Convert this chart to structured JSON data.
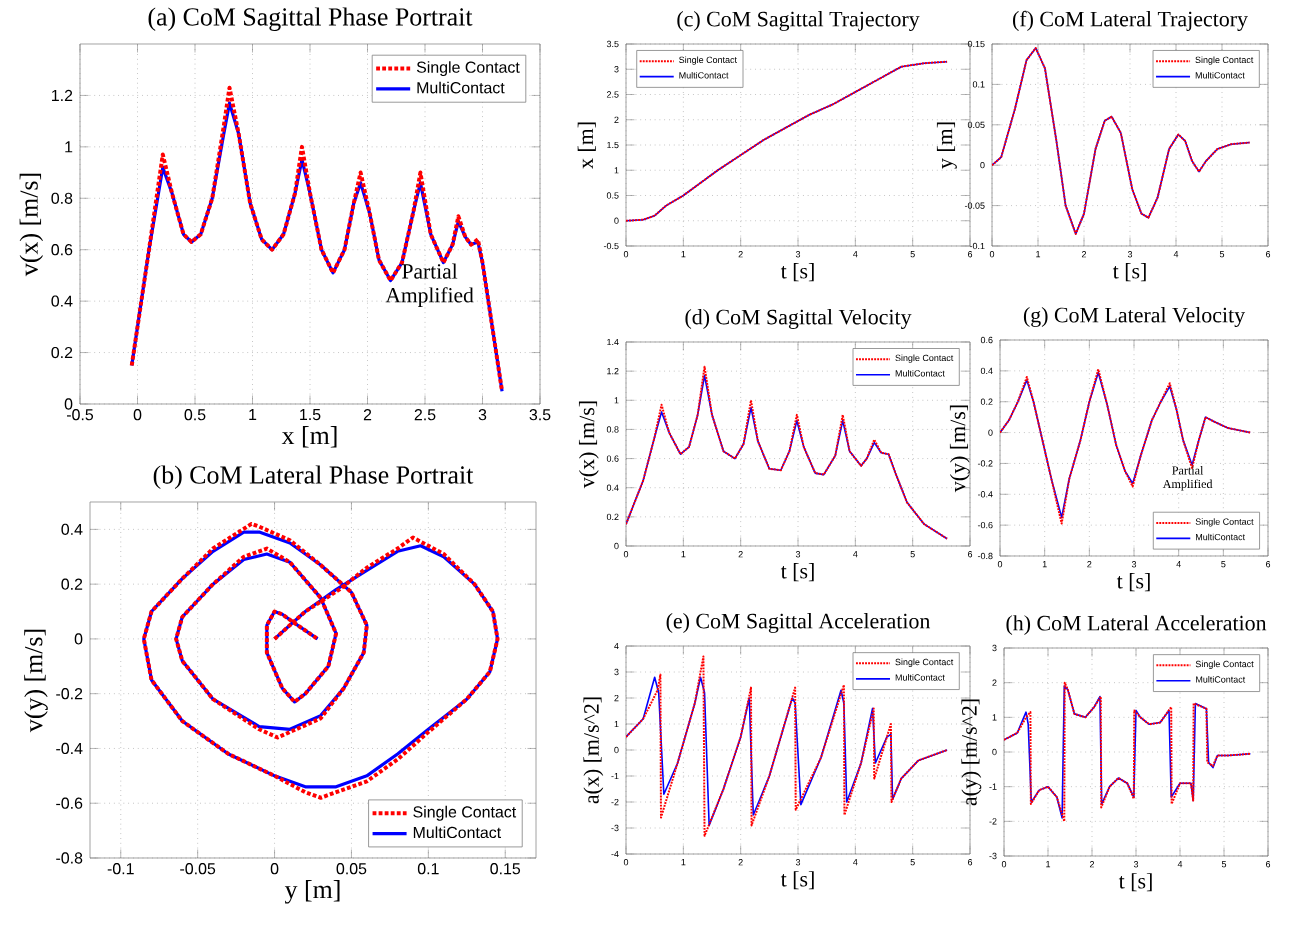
{
  "chart_data": [
    {
      "type": "line",
      "title": "(a) CoM Sagittal Phase Portrait",
      "xlabel": "x [m]",
      "ylabel": "v(x) [m/s]",
      "xlim": [
        -0.5,
        3.5
      ],
      "ylim": [
        0,
        1.4
      ],
      "xticks": [
        -0.5,
        0,
        0.5,
        1,
        1.5,
        2,
        2.5,
        3,
        3.5
      ],
      "yticks": [
        0,
        0.2,
        0.4,
        0.6,
        0.8,
        1,
        1.2
      ],
      "grid": true,
      "legend": "top right",
      "annotations": [
        "Partial Amplified"
      ],
      "series": [
        {
          "name": "Single Contact",
          "color": "#ff0000",
          "line_style": "dashed",
          "x": [
            -0.05,
            0.1,
            0.22,
            0.3,
            0.4,
            0.47,
            0.55,
            0.65,
            0.75,
            0.8,
            0.88,
            0.98,
            1.08,
            1.17,
            1.27,
            1.37,
            1.43,
            1.5,
            1.6,
            1.7,
            1.8,
            1.88,
            1.94,
            2.02,
            2.1,
            2.2,
            2.3,
            2.4,
            2.46,
            2.55,
            2.66,
            2.74,
            2.79,
            2.85,
            2.9,
            2.96,
            3.0,
            3.17
          ],
          "values": [
            0.15,
            0.6,
            0.97,
            0.82,
            0.66,
            0.63,
            0.66,
            0.8,
            1.08,
            1.23,
            1.05,
            0.78,
            0.64,
            0.6,
            0.66,
            0.82,
            1.0,
            0.82,
            0.6,
            0.51,
            0.6,
            0.78,
            0.9,
            0.74,
            0.56,
            0.48,
            0.55,
            0.75,
            0.9,
            0.66,
            0.55,
            0.62,
            0.73,
            0.65,
            0.62,
            0.64,
            0.55,
            0.05
          ]
        },
        {
          "name": "MultiContact",
          "color": "#0000ff",
          "line_style": "solid",
          "x": [
            -0.05,
            0.1,
            0.22,
            0.3,
            0.4,
            0.47,
            0.55,
            0.65,
            0.75,
            0.8,
            0.88,
            0.98,
            1.08,
            1.17,
            1.27,
            1.37,
            1.43,
            1.5,
            1.6,
            1.7,
            1.8,
            1.88,
            1.94,
            2.02,
            2.1,
            2.2,
            2.3,
            2.4,
            2.46,
            2.55,
            2.66,
            2.74,
            2.79,
            2.85,
            2.9,
            2.96,
            3.0,
            3.17
          ],
          "values": [
            0.15,
            0.6,
            0.92,
            0.82,
            0.66,
            0.63,
            0.66,
            0.8,
            1.05,
            1.17,
            1.05,
            0.78,
            0.64,
            0.6,
            0.66,
            0.82,
            0.95,
            0.82,
            0.6,
            0.51,
            0.6,
            0.78,
            0.86,
            0.74,
            0.56,
            0.48,
            0.55,
            0.75,
            0.86,
            0.66,
            0.55,
            0.62,
            0.71,
            0.65,
            0.62,
            0.63,
            0.55,
            0.05
          ]
        }
      ]
    },
    {
      "type": "line",
      "title": "(b) CoM Lateral Phase Portrait",
      "xlabel": "y [m]",
      "ylabel": "v(y) [m/s]",
      "xlim": [
        -0.12,
        0.17
      ],
      "ylim": [
        -0.8,
        0.5
      ],
      "xticks": [
        -0.1,
        -0.05,
        0,
        0.05,
        0.1,
        0.15
      ],
      "yticks": [
        -0.8,
        -0.6,
        -0.4,
        -0.2,
        0,
        0.2,
        0.4
      ],
      "grid": true,
      "legend": "bottom right",
      "series": [
        {
          "name": "Single Contact",
          "color": "#ff0000",
          "line_style": "dashed",
          "x": [
            0,
            0.02,
            0.042,
            0.06,
            0.08,
            0.09,
            0.11,
            0.13,
            0.142,
            0.145,
            0.14,
            0.125,
            0.1,
            0.08,
            0.06,
            0.03,
            0.02,
            0.0,
            -0.03,
            -0.06,
            -0.08,
            -0.085,
            -0.08,
            -0.06,
            -0.04,
            -0.015,
            -0.01,
            0.01,
            0.03,
            0.05,
            0.06,
            0.058,
            0.045,
            0.03,
            0.002,
            -0.01,
            -0.04,
            -0.06,
            -0.064,
            -0.06,
            -0.04,
            -0.02,
            -0.005,
            0.01,
            0.03,
            0.04,
            0.035,
            0.02,
            0.013,
            0.005,
            -0.005,
            -0.005,
            0.0,
            0.005,
            0.015,
            0.028
          ],
          "values": [
            0,
            0.1,
            0.18,
            0.26,
            0.33,
            0.37,
            0.31,
            0.2,
            0.1,
            0,
            -0.12,
            -0.22,
            -0.34,
            -0.44,
            -0.52,
            -0.58,
            -0.56,
            -0.5,
            -0.42,
            -0.3,
            -0.15,
            0,
            0.1,
            0.22,
            0.33,
            0.42,
            0.41,
            0.36,
            0.27,
            0.17,
            0.05,
            -0.05,
            -0.18,
            -0.29,
            -0.36,
            -0.33,
            -0.22,
            -0.08,
            0,
            0.08,
            0.2,
            0.3,
            0.33,
            0.28,
            0.15,
            0.02,
            -0.1,
            -0.2,
            -0.23,
            -0.18,
            -0.05,
            0.05,
            0.1,
            0.09,
            0.05,
            0
          ]
        },
        {
          "name": "MultiContact",
          "color": "#0000ff",
          "line_style": "solid",
          "x": [
            0,
            0.02,
            0.04,
            0.06,
            0.08,
            0.095,
            0.11,
            0.13,
            0.142,
            0.145,
            0.14,
            0.125,
            0.1,
            0.08,
            0.06,
            0.04,
            0.02,
            0.0,
            -0.03,
            -0.06,
            -0.08,
            -0.085,
            -0.08,
            -0.06,
            -0.04,
            -0.02,
            -0.01,
            0.01,
            0.03,
            0.05,
            0.06,
            0.058,
            0.045,
            0.03,
            0.01,
            -0.01,
            -0.04,
            -0.06,
            -0.064,
            -0.06,
            -0.04,
            -0.02,
            -0.005,
            0.01,
            0.03,
            0.04,
            0.035,
            0.02,
            0.013,
            0.005,
            -0.005,
            -0.005,
            0.0,
            0.005,
            0.015,
            0.028
          ],
          "values": [
            0,
            0.1,
            0.18,
            0.25,
            0.32,
            0.34,
            0.3,
            0.2,
            0.1,
            0,
            -0.12,
            -0.22,
            -0.33,
            -0.42,
            -0.5,
            -0.54,
            -0.54,
            -0.5,
            -0.42,
            -0.3,
            -0.15,
            0,
            0.1,
            0.22,
            0.32,
            0.39,
            0.39,
            0.35,
            0.27,
            0.17,
            0.05,
            -0.05,
            -0.18,
            -0.28,
            -0.33,
            -0.32,
            -0.22,
            -0.08,
            0,
            0.08,
            0.2,
            0.29,
            0.31,
            0.28,
            0.15,
            0.02,
            -0.1,
            -0.2,
            -0.23,
            -0.18,
            -0.05,
            0.05,
            0.1,
            0.09,
            0.05,
            0
          ]
        }
      ]
    },
    {
      "type": "line",
      "title": "(c) CoM Sagittal Trajectory",
      "xlabel": "t [s]",
      "ylabel": "x [m]",
      "xlim": [
        0,
        6
      ],
      "ylim": [
        -0.5,
        3.5
      ],
      "xticks": [
        0,
        1,
        2,
        3,
        4,
        5,
        6
      ],
      "yticks": [
        -0.5,
        0,
        0.5,
        1,
        1.5,
        2,
        2.5,
        3,
        3.5
      ],
      "grid": true,
      "legend": "top left",
      "series": [
        {
          "name": "Single Contact",
          "color": "#ff0000",
          "line_style": "dashed",
          "x": [
            0,
            0.3,
            0.5,
            0.7,
            1.0,
            1.3,
            1.6,
            2.0,
            2.4,
            2.8,
            3.2,
            3.6,
            4.0,
            4.4,
            4.8,
            5.2,
            5.6
          ],
          "values": [
            0,
            0.02,
            0.1,
            0.3,
            0.5,
            0.75,
            1.0,
            1.3,
            1.6,
            1.85,
            2.1,
            2.3,
            2.55,
            2.8,
            3.05,
            3.12,
            3.15
          ]
        },
        {
          "name": "MultiContact",
          "color": "#0000ff",
          "line_style": "solid",
          "x": [
            0,
            0.3,
            0.5,
            0.7,
            1.0,
            1.3,
            1.6,
            2.0,
            2.4,
            2.8,
            3.2,
            3.6,
            4.0,
            4.4,
            4.8,
            5.2,
            5.6
          ],
          "values": [
            0,
            0.02,
            0.1,
            0.3,
            0.5,
            0.75,
            1.0,
            1.3,
            1.6,
            1.85,
            2.1,
            2.3,
            2.55,
            2.8,
            3.05,
            3.12,
            3.15
          ]
        }
      ]
    },
    {
      "type": "line",
      "title": "(d) CoM Sagittal Velocity",
      "xlabel": "t [s]",
      "ylabel": "v(x) [m/s]",
      "xlim": [
        0,
        6
      ],
      "ylim": [
        0,
        1.4
      ],
      "xticks": [
        0,
        1,
        2,
        3,
        4,
        5,
        6
      ],
      "yticks": [
        0,
        0.2,
        0.4,
        0.6,
        0.8,
        1,
        1.2,
        1.4
      ],
      "grid": true,
      "legend": "top right",
      "series": [
        {
          "name": "Single Contact",
          "color": "#ff0000",
          "line_style": "dashed",
          "x": [
            0,
            0.3,
            0.5,
            0.62,
            0.75,
            0.95,
            1.1,
            1.25,
            1.37,
            1.5,
            1.7,
            1.9,
            2.05,
            2.18,
            2.3,
            2.5,
            2.7,
            2.85,
            2.98,
            3.1,
            3.3,
            3.45,
            3.65,
            3.78,
            3.9,
            4.1,
            4.2,
            4.33,
            4.45,
            4.58,
            4.7,
            4.9,
            5.2,
            5.6
          ],
          "values": [
            0.15,
            0.45,
            0.75,
            0.97,
            0.78,
            0.63,
            0.68,
            0.9,
            1.23,
            0.9,
            0.65,
            0.6,
            0.7,
            1.0,
            0.72,
            0.53,
            0.52,
            0.65,
            0.9,
            0.68,
            0.5,
            0.49,
            0.62,
            0.9,
            0.65,
            0.55,
            0.6,
            0.73,
            0.64,
            0.63,
            0.5,
            0.3,
            0.15,
            0.05
          ]
        },
        {
          "name": "MultiContact",
          "color": "#0000ff",
          "line_style": "solid",
          "x": [
            0,
            0.3,
            0.5,
            0.62,
            0.75,
            0.95,
            1.1,
            1.25,
            1.37,
            1.5,
            1.7,
            1.9,
            2.05,
            2.18,
            2.3,
            2.5,
            2.7,
            2.85,
            2.98,
            3.1,
            3.3,
            3.45,
            3.65,
            3.78,
            3.9,
            4.1,
            4.2,
            4.33,
            4.45,
            4.58,
            4.7,
            4.9,
            5.2,
            5.6
          ],
          "values": [
            0.15,
            0.45,
            0.75,
            0.92,
            0.78,
            0.63,
            0.68,
            0.9,
            1.17,
            0.9,
            0.65,
            0.6,
            0.7,
            0.95,
            0.72,
            0.53,
            0.52,
            0.65,
            0.86,
            0.68,
            0.5,
            0.49,
            0.62,
            0.86,
            0.65,
            0.55,
            0.6,
            0.71,
            0.64,
            0.63,
            0.5,
            0.3,
            0.15,
            0.05
          ]
        }
      ]
    },
    {
      "type": "line",
      "title": "(e) CoM Sagittal Acceleration",
      "xlabel": "t [s]",
      "ylabel": "a(x) [m/s^2]",
      "xlim": [
        0,
        6
      ],
      "ylim": [
        -4,
        4
      ],
      "xticks": [
        0,
        1,
        2,
        3,
        4,
        5,
        6
      ],
      "yticks": [
        -4,
        -3,
        -2,
        -1,
        0,
        1,
        2,
        3,
        4
      ],
      "grid": true,
      "legend": "top right",
      "series": [
        {
          "name": "Single Contact",
          "color": "#ff0000",
          "line_style": "dashed",
          "x": [
            0,
            0.3,
            0.55,
            0.6,
            0.61,
            0.9,
            1.2,
            1.35,
            1.37,
            1.7,
            2.0,
            2.18,
            2.19,
            2.5,
            2.95,
            2.96,
            3.4,
            3.8,
            3.81,
            4.1,
            4.32,
            4.33,
            4.55,
            4.62,
            4.63,
            4.8,
            5.1,
            5.6
          ],
          "values": [
            0.5,
            1.2,
            2.3,
            2.9,
            -2.6,
            -0.5,
            1.8,
            3.6,
            -3.3,
            -1.5,
            0.5,
            2.4,
            -2.9,
            -1.0,
            2.4,
            -2.3,
            -0.3,
            2.5,
            -2.5,
            -0.5,
            1.6,
            -1.1,
            0.5,
            1.0,
            -2.0,
            -1.1,
            -0.4,
            0.0
          ]
        },
        {
          "name": "MultiContact",
          "color": "#0000ff",
          "line_style": "solid",
          "x": [
            0,
            0.3,
            0.5,
            0.57,
            0.66,
            0.9,
            1.2,
            1.3,
            1.37,
            1.45,
            1.7,
            2.0,
            2.15,
            2.22,
            2.5,
            2.9,
            2.95,
            3.05,
            3.4,
            3.75,
            3.8,
            3.85,
            4.1,
            4.3,
            4.35,
            4.55,
            4.62,
            4.65,
            4.8,
            5.1,
            5.6
          ],
          "values": [
            0.5,
            1.2,
            2.8,
            2.2,
            -1.7,
            -0.5,
            1.8,
            2.8,
            2.2,
            -2.9,
            -1.5,
            0.5,
            2.0,
            -2.5,
            -1.0,
            2.0,
            1.8,
            -2.1,
            -0.3,
            2.3,
            1.8,
            -2.0,
            -0.5,
            1.6,
            -0.5,
            0.5,
            0.6,
            -1.9,
            -1.1,
            -0.4,
            0.0
          ]
        }
      ]
    },
    {
      "type": "line",
      "title": "(f) CoM Lateral Trajectory",
      "xlabel": "t [s]",
      "ylabel": "y [m]",
      "xlim": [
        0,
        6
      ],
      "ylim": [
        -0.1,
        0.15
      ],
      "xticks": [
        0,
        1,
        2,
        3,
        4,
        5,
        6
      ],
      "yticks": [
        -0.1,
        -0.05,
        0,
        0.05,
        0.1,
        0.15
      ],
      "grid": true,
      "legend": "top right",
      "series": [
        {
          "name": "Single Contact",
          "color": "#ff0000",
          "line_style": "dashed",
          "x": [
            0,
            0.2,
            0.5,
            0.75,
            0.95,
            1.15,
            1.4,
            1.6,
            1.82,
            2.0,
            2.25,
            2.45,
            2.6,
            2.8,
            3.05,
            3.25,
            3.4,
            3.6,
            3.85,
            4.05,
            4.2,
            4.35,
            4.5,
            4.65,
            4.9,
            5.2,
            5.6
          ],
          "values": [
            0,
            0.01,
            0.07,
            0.13,
            0.145,
            0.12,
            0.03,
            -0.05,
            -0.085,
            -0.06,
            0.02,
            0.055,
            0.06,
            0.04,
            -0.03,
            -0.06,
            -0.065,
            -0.04,
            0.02,
            0.038,
            0.03,
            0.005,
            -0.008,
            0.005,
            0.02,
            0.026,
            0.028
          ]
        },
        {
          "name": "MultiContact",
          "color": "#0000ff",
          "line_style": "solid",
          "x": [
            0,
            0.2,
            0.5,
            0.75,
            0.95,
            1.15,
            1.4,
            1.6,
            1.82,
            2.0,
            2.25,
            2.45,
            2.6,
            2.8,
            3.05,
            3.25,
            3.4,
            3.6,
            3.85,
            4.05,
            4.2,
            4.35,
            4.5,
            4.65,
            4.9,
            5.2,
            5.6
          ],
          "values": [
            0,
            0.01,
            0.07,
            0.13,
            0.145,
            0.12,
            0.03,
            -0.05,
            -0.085,
            -0.06,
            0.02,
            0.055,
            0.06,
            0.04,
            -0.03,
            -0.06,
            -0.065,
            -0.04,
            0.02,
            0.038,
            0.03,
            0.005,
            -0.008,
            0.005,
            0.02,
            0.026,
            0.028
          ]
        }
      ]
    },
    {
      "type": "line",
      "title": "(g) CoM Lateral Velocity",
      "xlabel": "t [s]",
      "ylabel": "v(y) [m/s]",
      "xlim": [
        0,
        6
      ],
      "ylim": [
        -0.8,
        0.6
      ],
      "xticks": [
        0,
        1,
        2,
        3,
        4,
        5,
        6
      ],
      "yticks": [
        -0.8,
        -0.6,
        -0.4,
        -0.2,
        0,
        0.2,
        0.4,
        0.6
      ],
      "grid": true,
      "legend": "bottom right",
      "annotations": [
        "Partial Amplified"
      ],
      "series": [
        {
          "name": "Single Contact",
          "color": "#ff0000",
          "line_style": "dashed",
          "x": [
            0,
            0.2,
            0.4,
            0.6,
            0.75,
            0.95,
            1.15,
            1.38,
            1.55,
            1.8,
            2.0,
            2.2,
            2.4,
            2.6,
            2.8,
            2.97,
            3.15,
            3.4,
            3.6,
            3.8,
            3.95,
            4.1,
            4.3,
            4.45,
            4.6,
            4.8,
            5.1,
            5.6
          ],
          "values": [
            0,
            0.08,
            0.2,
            0.36,
            0.2,
            -0.05,
            -0.3,
            -0.59,
            -0.3,
            -0.05,
            0.2,
            0.41,
            0.18,
            -0.08,
            -0.25,
            -0.35,
            -0.15,
            0.08,
            0.2,
            0.32,
            0.15,
            -0.05,
            -0.23,
            -0.05,
            0.1,
            0.07,
            0.03,
            0.0
          ]
        },
        {
          "name": "MultiContact",
          "color": "#0000ff",
          "line_style": "solid",
          "x": [
            0,
            0.2,
            0.4,
            0.6,
            0.75,
            0.95,
            1.15,
            1.38,
            1.55,
            1.8,
            2.0,
            2.2,
            2.4,
            2.6,
            2.8,
            2.97,
            3.15,
            3.4,
            3.6,
            3.8,
            3.95,
            4.1,
            4.3,
            4.45,
            4.6,
            4.8,
            5.1,
            5.6
          ],
          "values": [
            0,
            0.08,
            0.2,
            0.34,
            0.2,
            -0.05,
            -0.3,
            -0.55,
            -0.3,
            -0.05,
            0.2,
            0.39,
            0.18,
            -0.08,
            -0.25,
            -0.33,
            -0.15,
            0.08,
            0.2,
            0.3,
            0.15,
            -0.05,
            -0.21,
            -0.05,
            0.1,
            0.07,
            0.03,
            0.0
          ]
        }
      ]
    },
    {
      "type": "line",
      "title": "(h) CoM Lateral Acceleration",
      "xlabel": "t [s]",
      "ylabel": "a(y) [m/s^2]",
      "xlim": [
        0,
        6
      ],
      "ylim": [
        -3,
        3
      ],
      "xticks": [
        0,
        1,
        2,
        3,
        4,
        5,
        6
      ],
      "yticks": [
        -3,
        -2,
        -1,
        0,
        1,
        2,
        3
      ],
      "grid": true,
      "legend": "top right",
      "series": [
        {
          "name": "Single Contact",
          "color": "#ff0000",
          "line_style": "dashed",
          "x": [
            0,
            0.3,
            0.5,
            0.6,
            0.61,
            0.8,
            1.0,
            1.2,
            1.37,
            1.38,
            1.45,
            1.6,
            1.85,
            2.05,
            2.2,
            2.21,
            2.4,
            2.6,
            2.8,
            2.95,
            2.96,
            3.1,
            3.3,
            3.55,
            3.8,
            3.81,
            4.0,
            4.25,
            4.3,
            4.31,
            4.6,
            4.62,
            4.75,
            4.85,
            5.1,
            5.6
          ],
          "values": [
            0.35,
            0.55,
            1.0,
            1.15,
            -1.5,
            -1.1,
            -1.0,
            -1.3,
            -2.0,
            2.0,
            1.8,
            1.1,
            1.0,
            1.3,
            1.6,
            -1.6,
            -1.0,
            -0.75,
            -0.9,
            -1.35,
            1.2,
            1.0,
            0.8,
            0.85,
            1.3,
            -1.5,
            -0.9,
            -0.9,
            -1.4,
            1.4,
            1.25,
            -0.3,
            -0.4,
            -0.1,
            -0.1,
            -0.05
          ]
        },
        {
          "name": "MultiContact",
          "color": "#0000ff",
          "line_style": "solid",
          "x": [
            0,
            0.3,
            0.5,
            0.55,
            0.62,
            0.8,
            1.0,
            1.2,
            1.32,
            1.37,
            1.45,
            1.6,
            1.85,
            2.05,
            2.18,
            2.22,
            2.4,
            2.6,
            2.8,
            2.95,
            3.0,
            3.1,
            3.3,
            3.55,
            3.75,
            3.8,
            4.0,
            4.25,
            4.3,
            4.35,
            4.6,
            4.65,
            4.75,
            4.85,
            5.1,
            5.6
          ],
          "values": [
            0.35,
            0.55,
            1.15,
            0.8,
            -1.45,
            -1.1,
            -1.0,
            -1.3,
            -1.9,
            1.9,
            1.8,
            1.1,
            1.0,
            1.3,
            1.6,
            -1.5,
            -1.0,
            -0.75,
            -0.9,
            -1.3,
            1.2,
            1.0,
            0.8,
            0.85,
            1.2,
            -1.3,
            -0.9,
            -0.9,
            -1.4,
            1.4,
            1.25,
            -0.3,
            -0.45,
            -0.1,
            -0.1,
            -0.05
          ]
        }
      ]
    }
  ]
}
